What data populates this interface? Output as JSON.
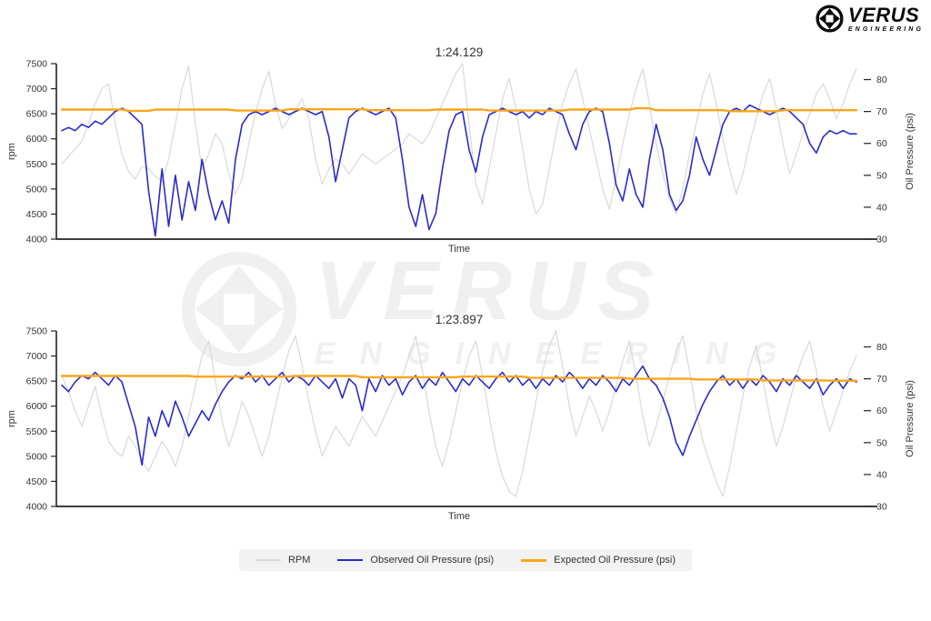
{
  "brand": {
    "name": "VERUS",
    "sub": "ENGINEERING"
  },
  "watermark": {
    "name": "VERUS",
    "sub": "ENGINEERING"
  },
  "colors": {
    "rpm_line": "#d9d9d9",
    "observed_line": "#2b2bc8",
    "expected_line": "#f9a61a",
    "axis": "#222222",
    "text": "#333333",
    "watermark": "#f0f0f0",
    "legend_bg": "#f2f2f2"
  },
  "legend": {
    "items": [
      {
        "label": "RPM",
        "color": "#d9d9d9",
        "thickness": 2
      },
      {
        "label": "Observed Oil Pressure (psi)",
        "color": "#2b2bc8",
        "thickness": 2
      },
      {
        "label": "Expected Oil Pressure (psi)",
        "color": "#f9a61a",
        "thickness": 3
      }
    ]
  },
  "chart_data": [
    {
      "type": "line",
      "title": "1:24.129",
      "xlabel": "Time",
      "ylabel_left": "rpm",
      "ylabel_right": "Oil Pressure (psi)",
      "grid": false,
      "legend_position": "bottom",
      "left_axis": {
        "range": [
          4000,
          7500
        ],
        "ticks": [
          4000,
          4500,
          5000,
          5500,
          6000,
          6500,
          7000,
          7500
        ]
      },
      "right_axis": {
        "range": [
          30,
          85
        ],
        "ticks": [
          30,
          40,
          50,
          60,
          70,
          80
        ]
      },
      "series": [
        {
          "name": "RPM",
          "axis": "left",
          "color": "#d9d9d9",
          "width": 1.2,
          "values": [
            5500,
            5650,
            5800,
            5950,
            6300,
            6700,
            7000,
            7100,
            6300,
            5700,
            5350,
            5200,
            5450,
            5400,
            5250,
            5150,
            5600,
            6300,
            7000,
            7450,
            6300,
            5400,
            5700,
            6100,
            5900,
            5300,
            4900,
            5200,
            5900,
            6500,
            7000,
            7350,
            6700,
            6200,
            6400,
            6600,
            6800,
            6400,
            5600,
            5100,
            5400,
            5600,
            5500,
            5300,
            5500,
            5700,
            5600,
            5500,
            5600,
            5700,
            5800,
            5900,
            6100,
            6000,
            5900,
            6100,
            6400,
            6700,
            7000,
            7300,
            7500,
            6300,
            5100,
            4700,
            5400,
            6100,
            6800,
            7200,
            6600,
            5800,
            5000,
            4500,
            4700,
            5400,
            6100,
            6700,
            7100,
            7400,
            6800,
            6200,
            5600,
            5000,
            4600,
            5200,
            5900,
            6500,
            7000,
            7400,
            6700,
            5900,
            5300,
            4800,
            4500,
            5000,
            5700,
            6300,
            6900,
            7300,
            6700,
            6000,
            5400,
            4900,
            5300,
            5900,
            6400,
            6900,
            7200,
            6600,
            5900,
            5300,
            5700,
            6100,
            6500,
            6900,
            7100,
            6800,
            6400,
            6700,
            7100,
            7400
          ]
        },
        {
          "name": "Observed Oil Pressure (psi)",
          "axis": "right",
          "color": "#2b2bc8",
          "width": 1.6,
          "values": [
            64,
            65,
            64,
            66,
            65,
            67,
            66,
            68,
            70,
            71,
            70,
            68,
            66,
            45,
            31,
            52,
            34,
            50,
            36,
            48,
            39,
            55,
            44,
            36,
            42,
            35,
            55,
            66,
            69,
            70,
            69,
            70,
            71,
            70,
            69,
            70,
            71,
            70,
            69,
            70,
            62,
            48,
            58,
            68,
            70,
            71,
            70,
            69,
            70,
            71,
            68,
            55,
            40,
            34,
            44,
            33,
            38,
            52,
            64,
            69,
            70,
            58,
            51,
            62,
            69,
            70,
            71,
            70,
            69,
            70,
            68,
            70,
            69,
            71,
            70,
            69,
            63,
            58,
            66,
            70,
            71,
            70,
            60,
            47,
            42,
            52,
            44,
            40,
            55,
            66,
            58,
            44,
            39,
            42,
            50,
            62,
            55,
            50,
            58,
            66,
            70,
            71,
            70,
            72,
            71,
            70,
            69,
            70,
            71,
            70,
            68,
            66,
            60,
            57,
            62,
            64,
            63,
            64,
            63,
            63
          ]
        },
        {
          "name": "Expected Oil Pressure (psi)",
          "axis": "right",
          "color": "#f9a61a",
          "width": 2.4,
          "values": [
            70.6,
            70.6,
            70.6,
            70.6,
            70.6,
            70.6,
            70.6,
            70.6,
            70.6,
            70.6,
            70.2,
            70.2,
            70.2,
            70.2,
            70.6,
            70.6,
            70.6,
            70.6,
            70.6,
            70.6,
            70.6,
            70.6,
            70.6,
            70.6,
            70.6,
            70.6,
            70.3,
            70.3,
            70.3,
            70.3,
            70.3,
            70.3,
            70.3,
            70.3,
            70.7,
            70.7,
            70.7,
            70.7,
            70.7,
            70.7,
            70.7,
            70.7,
            70.7,
            70.7,
            70.7,
            70.7,
            70.4,
            70.4,
            70.4,
            70.4,
            70.4,
            70.4,
            70.4,
            70.4,
            70.4,
            70.4,
            70.6,
            70.6,
            70.6,
            70.6,
            70.6,
            70.6,
            70.6,
            70.6,
            70.3,
            70.3,
            70.3,
            70.3,
            70.3,
            70.3,
            70.3,
            70.3,
            70.3,
            70.3,
            70.3,
            70.3,
            70.6,
            70.6,
            70.6,
            70.6,
            70.6,
            70.6,
            70.6,
            70.6,
            70.6,
            70.6,
            71.0,
            71.0,
            71.0,
            70.4,
            70.4,
            70.4,
            70.4,
            70.4,
            70.4,
            70.4,
            70.4,
            70.4,
            70.4,
            70.4,
            70.1,
            70.1,
            70.1,
            70.1,
            70.1,
            70.1,
            70.1,
            70.1,
            70.4,
            70.4,
            70.4,
            70.4,
            70.4,
            70.4,
            70.4,
            70.4,
            70.4,
            70.4,
            70.4,
            70.4
          ]
        }
      ]
    },
    {
      "type": "line",
      "title": "1:23.897",
      "xlabel": "Time",
      "ylabel_left": "rpm",
      "ylabel_right": "Oil Pressure (psi)",
      "grid": false,
      "legend_position": "bottom",
      "left_axis": {
        "range": [
          4000,
          7500
        ],
        "ticks": [
          4000,
          4500,
          5000,
          5500,
          6000,
          6500,
          7000,
          7500
        ]
      },
      "right_axis": {
        "range": [
          30,
          85
        ],
        "ticks": [
          30,
          40,
          50,
          60,
          70,
          80
        ]
      },
      "series": [
        {
          "name": "RPM",
          "axis": "left",
          "color": "#d9d9d9",
          "width": 1.2,
          "values": [
            6600,
            6300,
            5900,
            5600,
            6000,
            6400,
            5800,
            5300,
            5100,
            5000,
            5400,
            5200,
            4900,
            4700,
            5000,
            5300,
            5100,
            4800,
            5200,
            5800,
            6400,
            7000,
            7300,
            6500,
            5700,
            5200,
            5600,
            6100,
            5800,
            5400,
            5000,
            5400,
            6000,
            6600,
            7100,
            7400,
            6800,
            6100,
            5500,
            5000,
            5300,
            5600,
            5400,
            5200,
            5500,
            5800,
            5600,
            5400,
            5700,
            6000,
            6300,
            6600,
            7000,
            7400,
            6700,
            5900,
            5200,
            4800,
            5300,
            5900,
            6500,
            7000,
            7300,
            6600,
            5800,
            5100,
            4600,
            4300,
            4200,
            4700,
            5400,
            6100,
            6700,
            7200,
            7500,
            6800,
            6000,
            5400,
            5800,
            6200,
            5900,
            5500,
            5900,
            6400,
            6900,
            7300,
            6600,
            5800,
            5200,
            5600,
            6100,
            6600,
            7100,
            7400,
            6700,
            5900,
            5300,
            4900,
            4500,
            4200,
            4800,
            5500,
            6200,
            6800,
            7200,
            6500,
            5800,
            5200,
            5600,
            6100,
            6600,
            7000,
            7300,
            6700,
            6000,
            5500,
            5900,
            6300,
            6700,
            7000
          ]
        },
        {
          "name": "Observed Oil Pressure (psi)",
          "axis": "right",
          "color": "#2b2bc8",
          "width": 1.6,
          "values": [
            68,
            66,
            69,
            71,
            70,
            72,
            70,
            68,
            71,
            69,
            62,
            55,
            43,
            58,
            52,
            60,
            55,
            63,
            58,
            52,
            56,
            60,
            57,
            62,
            66,
            69,
            71,
            70,
            72,
            69,
            71,
            68,
            70,
            72,
            69,
            71,
            70,
            68,
            71,
            69,
            67,
            70,
            64,
            70,
            68,
            60,
            70,
            66,
            71,
            68,
            70,
            65,
            69,
            71,
            67,
            70,
            68,
            72,
            69,
            66,
            70,
            68,
            71,
            69,
            67,
            70,
            72,
            69,
            71,
            68,
            70,
            67,
            70,
            68,
            71,
            69,
            72,
            70,
            67,
            70,
            68,
            71,
            69,
            66,
            70,
            68,
            71,
            74,
            70,
            68,
            64,
            58,
            50,
            46,
            52,
            57,
            62,
            66,
            69,
            71,
            68,
            70,
            67,
            70,
            68,
            71,
            69,
            66,
            70,
            68,
            71,
            69,
            67,
            70,
            65,
            68,
            70,
            67,
            70,
            69
          ]
        },
        {
          "name": "Expected Oil Pressure (psi)",
          "axis": "right",
          "color": "#f9a61a",
          "width": 2.4,
          "values": [
            70.9,
            70.9,
            70.9,
            70.9,
            70.9,
            70.9,
            70.9,
            70.9,
            70.9,
            70.9,
            70.9,
            70.9,
            70.9,
            70.9,
            70.9,
            70.9,
            70.9,
            70.9,
            70.9,
            70.9,
            70.7,
            70.7,
            70.7,
            70.7,
            70.7,
            70.7,
            70.7,
            70.7,
            70.7,
            70.7,
            70.7,
            70.7,
            70.7,
            70.7,
            70.7,
            70.9,
            70.9,
            70.9,
            70.9,
            70.9,
            70.9,
            70.9,
            70.9,
            70.9,
            70.9,
            70.5,
            70.5,
            70.5,
            70.5,
            70.5,
            70.5,
            70.5,
            70.5,
            70.5,
            70.5,
            70.5,
            70.5,
            70.5,
            70.5,
            70.5,
            70.7,
            70.7,
            70.7,
            70.7,
            70.7,
            70.7,
            70.7,
            70.7,
            70.7,
            70.7,
            70.3,
            70.3,
            70.3,
            70.3,
            70.3,
            70.3,
            70.3,
            70.3,
            70.3,
            70.3,
            70.3,
            70.3,
            70.3,
            70.3,
            70.3,
            70.0,
            70.0,
            70.0,
            70.0,
            70.0,
            70.0,
            70.0,
            70.0,
            70.0,
            70.0,
            69.8,
            69.8,
            69.8,
            69.8,
            69.8,
            69.8,
            69.8,
            69.8,
            69.8,
            69.8,
            69.5,
            69.5,
            69.5,
            69.5,
            69.5,
            69.5,
            69.5,
            69.5,
            69.5,
            69.5,
            69.4,
            69.4,
            69.4,
            69.4,
            69.4
          ]
        }
      ]
    }
  ]
}
